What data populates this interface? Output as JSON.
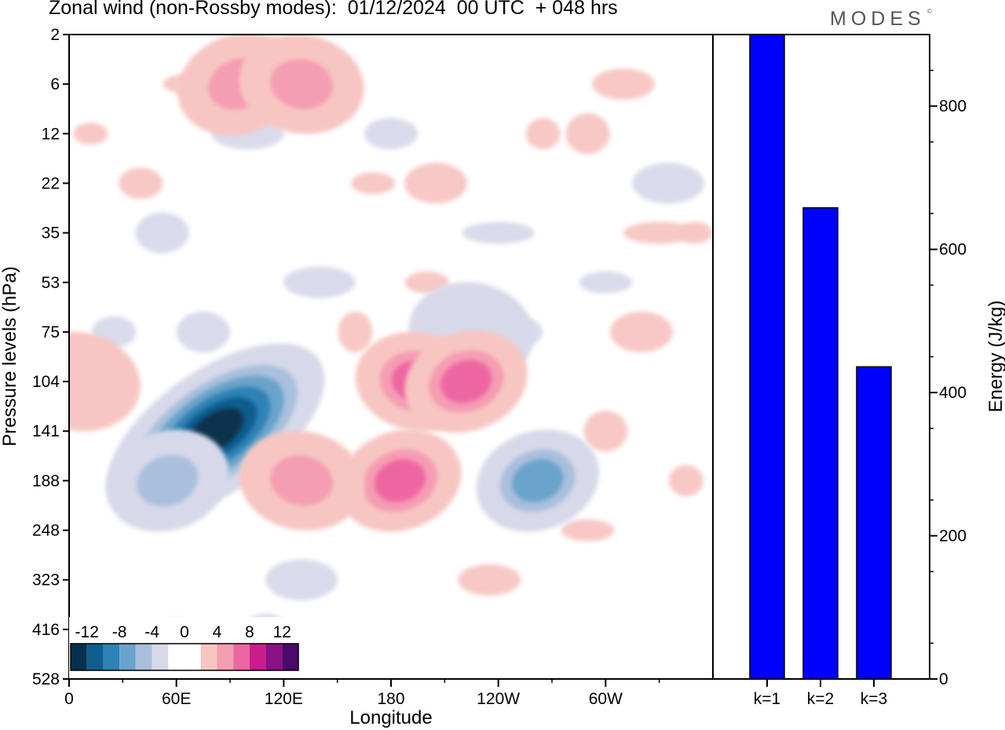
{
  "title": "Zonal wind (non-Rossby modes):  01/12/2024  00 UTC  + 048 hrs",
  "logo": "MODES",
  "logo_mark": "©",
  "colors": {
    "neg": [
      "#08304e",
      "#0f5d8e",
      "#2d82b5",
      "#6aa3cb",
      "#a9bfdc",
      "#d7d9ea"
    ],
    "pos": [
      "#f7c6c2",
      "#f59db2",
      "#ee66a1",
      "#c81e8c",
      "#8b0f86",
      "#4a0a6b"
    ],
    "bar": "#0000ff"
  },
  "chart_data": [
    {
      "type": "heatmap",
      "xlabel": "Longitude",
      "ylabel": "Pressure levels (hPa)",
      "x_ticks": [
        "0",
        "60E",
        "120E",
        "180",
        "120W",
        "60W"
      ],
      "y_ticks": [
        "2",
        "6",
        "12",
        "22",
        "35",
        "53",
        "75",
        "104",
        "141",
        "188",
        "248",
        "323",
        "416",
        "528"
      ],
      "colorbar_labels": [
        "-12",
        "-8",
        "-4",
        "0",
        "4",
        "8",
        "12"
      ],
      "features": [
        {
          "lon": 82,
          "level": 141,
          "value": -14
        },
        {
          "lon": 55,
          "level": 188,
          "value": -6
        },
        {
          "lon": 225,
          "level": 75,
          "value": -4
        },
        {
          "lon": 262,
          "level": 188,
          "value": -8
        },
        {
          "lon": 195,
          "level": 104,
          "value": 7
        },
        {
          "lon": 185,
          "level": 188,
          "value": 8
        },
        {
          "lon": 130,
          "level": 188,
          "value": 5
        },
        {
          "lon": 222,
          "level": 104,
          "value": 7
        },
        {
          "lon": 5,
          "level": 104,
          "value": 4
        },
        {
          "lon": 95,
          "level": 6,
          "value": 6
        },
        {
          "lon": 130,
          "level": 6,
          "value": 5
        }
      ]
    },
    {
      "type": "bar",
      "categories": [
        "k=1",
        "k=2",
        "k=3"
      ],
      "values": [
        900,
        658,
        436
      ],
      "ylabel": "Energy (J/kg)",
      "ylim": [
        0,
        900
      ],
      "y_ticks": [
        0,
        200,
        400,
        600,
        800
      ]
    }
  ]
}
